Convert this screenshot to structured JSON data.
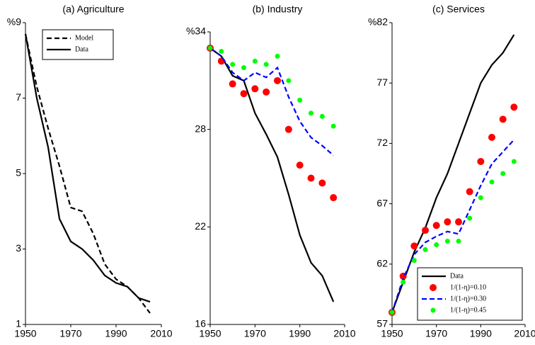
{
  "chart_data": [
    {
      "type": "line",
      "title": "(a) Agriculture",
      "x": [
        1950,
        1955,
        1960,
        1965,
        1970,
        1975,
        1980,
        1985,
        1990,
        1995,
        2000,
        2005
      ],
      "xlim": [
        1950,
        2010
      ],
      "xticks": [
        1950,
        1970,
        1990,
        2010
      ],
      "ylim": [
        1,
        9
      ],
      "yticks": [
        1,
        3,
        5,
        7,
        {
          "value": 9,
          "label": "%9"
        }
      ],
      "legend": "upper left",
      "series": [
        {
          "name": "Model",
          "color": "#000000",
          "dash": true,
          "values": [
            8.7,
            7.3,
            6.2,
            5.2,
            4.1,
            4.0,
            3.4,
            2.6,
            2.2,
            2.0,
            1.7,
            1.3
          ]
        },
        {
          "name": "Data",
          "color": "#000000",
          "dash": false,
          "values": [
            8.7,
            7.0,
            5.7,
            3.8,
            3.2,
            3.0,
            2.7,
            2.3,
            2.1,
            2.0,
            1.7,
            1.6
          ]
        }
      ]
    },
    {
      "type": "line",
      "title": "(b) Industry",
      "x": [
        1950,
        1955,
        1960,
        1965,
        1970,
        1975,
        1980,
        1985,
        1990,
        1995,
        2000,
        2005
      ],
      "xlim": [
        1950,
        2010
      ],
      "xticks": [
        1950,
        1970,
        1990,
        2010
      ],
      "ylim": [
        16,
        34
      ],
      "yticks": [
        16,
        22,
        28,
        {
          "value": 34,
          "label": "%34"
        }
      ],
      "series": [
        {
          "color": "#000000",
          "dash": false,
          "values": [
            33,
            32.5,
            31.3,
            31,
            29,
            27.7,
            26.3,
            24,
            21.5,
            19.8,
            19,
            17.4
          ]
        },
        {
          "color": "#ff0000",
          "marker": "circle",
          "values": [
            33,
            32.2,
            30.8,
            30.2,
            30.5,
            30.3,
            31,
            28,
            25.8,
            25,
            24.7,
            23.8
          ]
        },
        {
          "color": "#0000ff",
          "dash": true,
          "values": [
            33,
            32.5,
            31.5,
            31,
            31.5,
            31.2,
            31.8,
            30,
            28.5,
            27.5,
            27,
            26.4
          ]
        },
        {
          "color": "#00ff00",
          "marker": "star",
          "values": [
            33,
            32.8,
            32,
            31.8,
            32.2,
            32,
            32.5,
            31,
            29.8,
            29,
            28.8,
            28.2
          ]
        }
      ]
    },
    {
      "type": "line",
      "title": "(c) Services",
      "x": [
        1950,
        1955,
        1960,
        1965,
        1970,
        1975,
        1980,
        1985,
        1990,
        1995,
        2000,
        2005
      ],
      "xlim": [
        1950,
        2010
      ],
      "xticks": [
        1950,
        1970,
        1990,
        2010
      ],
      "ylim": [
        57,
        82
      ],
      "yticks": [
        57,
        62,
        67,
        72,
        77,
        {
          "value": 82,
          "label": "%82"
        }
      ],
      "legend": "lower right",
      "series": [
        {
          "name": "Data",
          "color": "#000000",
          "dash": false,
          "values": [
            58,
            60.5,
            63,
            65,
            67.5,
            69.5,
            72,
            74.5,
            77,
            78.5,
            79.5,
            81
          ]
        },
        {
          "name": "1/(1-η)=0.10",
          "color": "#ff0000",
          "marker": "circle",
          "values": [
            58,
            61,
            63.5,
            64.8,
            65.2,
            65.5,
            65.5,
            68,
            70.5,
            72.5,
            74,
            75
          ]
        },
        {
          "name": "1/(1-η)=0.30",
          "color": "#0000ff",
          "dash": true,
          "values": [
            58,
            60.8,
            62.8,
            63.8,
            64.3,
            64.7,
            64.5,
            66.5,
            68.5,
            70.3,
            71.3,
            72.3
          ]
        },
        {
          "name": "1/(1-η)=0.45",
          "color": "#00ff00",
          "marker": "star",
          "values": [
            58,
            60.5,
            62.3,
            63.2,
            63.6,
            63.9,
            63.9,
            65.8,
            67.5,
            68.8,
            69.5,
            70.5
          ]
        }
      ]
    }
  ]
}
